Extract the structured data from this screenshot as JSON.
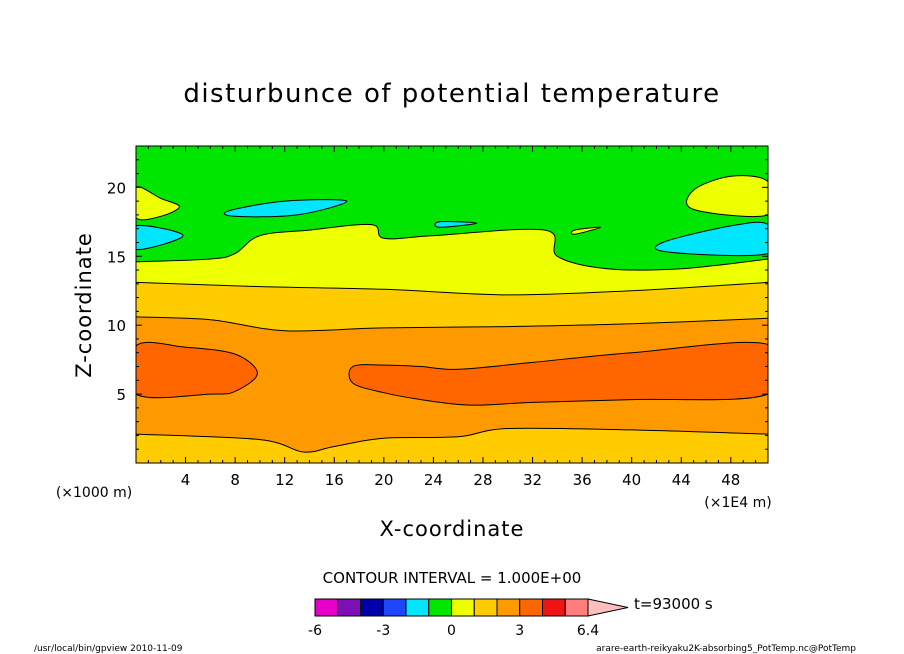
{
  "chart_data": {
    "type": "heatmap",
    "title": "disturbunce of potential temperature",
    "xlabel": "X-coordinate",
    "ylabel": "Z-coordinate",
    "x_unit": "(×1E4 m)",
    "y_unit": "(×1000 m)",
    "xlim": [
      0,
      51
    ],
    "ylim": [
      0,
      23
    ],
    "x_ticks": [
      4,
      8,
      12,
      16,
      20,
      24,
      28,
      32,
      36,
      40,
      44,
      48
    ],
    "y_ticks": [
      5,
      10,
      15,
      20
    ],
    "contour_interval_text": "CONTOUR INTERVAL = 1.000E+00",
    "time_label": "t=93000 s",
    "colorbar": {
      "levels": [
        -6,
        -5,
        -4,
        -3,
        -2,
        -1,
        0,
        1,
        2,
        3,
        4,
        5,
        6.4
      ],
      "tick_labels": [
        "-6",
        "-3",
        "0",
        "3",
        "6.4"
      ],
      "tick_values": [
        -6,
        -3,
        0,
        3,
        6.4
      ],
      "colors": [
        "#e600c8",
        "#7d0fb4",
        "#0000aa",
        "#1e46ff",
        "#00e6ff",
        "#00e600",
        "#eeff00",
        "#ffcc00",
        "#ff9900",
        "#ff6600",
        "#f01414",
        "#ff7d7d",
        "#ffbebe"
      ]
    },
    "bands": [
      {
        "name": "1",
        "color": "#ffcc00",
        "boundary": [
          [
            0,
            2.1
          ],
          [
            10,
            1.7
          ],
          [
            13.5,
            0.8
          ],
          [
            16,
            1.2
          ],
          [
            20,
            1.8
          ],
          [
            26,
            1.9
          ],
          [
            30,
            2.5
          ],
          [
            40,
            2.4
          ],
          [
            51,
            2.1
          ]
        ]
      },
      {
        "name": "2",
        "color": "#ff9900",
        "boundary": [
          [
            0,
            10.6
          ],
          [
            6,
            10.4
          ],
          [
            12,
            9.6
          ],
          [
            20,
            9.8
          ],
          [
            30,
            9.9
          ],
          [
            40,
            10.1
          ],
          [
            51,
            10.5
          ]
        ]
      },
      {
        "name": "3",
        "color": "#ffcc00",
        "boundary": [
          [
            0,
            13.1
          ],
          [
            10,
            12.8
          ],
          [
            20,
            12.6
          ],
          [
            30,
            12.2
          ],
          [
            40,
            12.5
          ],
          [
            51,
            13.1
          ]
        ]
      },
      {
        "name": "4",
        "color": "#eeff00",
        "boundary": [
          [
            0,
            14.6
          ],
          [
            6,
            14.8
          ],
          [
            8,
            15.2
          ],
          [
            10,
            16.5
          ],
          [
            14,
            16.9
          ],
          [
            19,
            17.3
          ],
          [
            20,
            16.3
          ],
          [
            24,
            16.5
          ],
          [
            33,
            16.9
          ],
          [
            34,
            15.0
          ],
          [
            38,
            14.1
          ],
          [
            44,
            14.1
          ],
          [
            51,
            14.8
          ]
        ]
      }
    ],
    "region_orange_high": {
      "color": "#ff6600",
      "outline": [
        [
          0,
          8.5
        ],
        [
          4,
          8.4
        ],
        [
          8,
          7.9
        ],
        [
          9.8,
          6.5
        ],
        [
          8,
          5.2
        ],
        [
          6,
          5.0
        ],
        [
          0,
          5.0
        ]
      ]
    },
    "region_orange_high_2": {
      "color": "#ff6600",
      "outline": [
        [
          17.5,
          7.0
        ],
        [
          20,
          7.1
        ],
        [
          23,
          7.0
        ],
        [
          26,
          6.8
        ],
        [
          32,
          7.3
        ],
        [
          40,
          8.0
        ],
        [
          51,
          8.6
        ],
        [
          51,
          5.0
        ],
        [
          40,
          4.6
        ],
        [
          32,
          4.4
        ],
        [
          27,
          4.2
        ],
        [
          23,
          4.6
        ],
        [
          20,
          5.1
        ],
        [
          17.5,
          5.8
        ]
      ]
    },
    "region_yellow_top_left": {
      "color": "#eeff00",
      "outline": [
        [
          0,
          20.0
        ],
        [
          2,
          19.2
        ],
        [
          3.5,
          18.6
        ],
        [
          2,
          17.9
        ],
        [
          0,
          17.8
        ]
      ]
    },
    "region_yellow_top_right": {
      "color": "#eeff00",
      "outline": [
        [
          45,
          19.8
        ],
        [
          48,
          20.8
        ],
        [
          51,
          20.4
        ],
        [
          51,
          18.0
        ],
        [
          45,
          18.4
        ]
      ]
    },
    "region_yellow_small": {
      "color": "#eeff00",
      "outline": [
        [
          35.4,
          16.9
        ],
        [
          37.5,
          17.1
        ],
        [
          35.4,
          16.6
        ]
      ]
    },
    "region_cyan_left": {
      "color": "#00e6ff",
      "outline": [
        [
          0,
          17.2
        ],
        [
          3.8,
          16.5
        ],
        [
          0,
          15.5
        ]
      ]
    },
    "region_cyan_mid": {
      "color": "#00e6ff",
      "outline": [
        [
          7.5,
          18.3
        ],
        [
          12,
          19.0
        ],
        [
          17,
          19.0
        ],
        [
          13,
          18.0
        ],
        [
          8,
          17.9
        ]
      ]
    },
    "region_cyan_small": {
      "color": "#00e6ff",
      "outline": [
        [
          24.5,
          17.5
        ],
        [
          27.5,
          17.4
        ],
        [
          24.5,
          17.1
        ]
      ]
    },
    "region_cyan_right": {
      "color": "#00e6ff",
      "outline": [
        [
          42.5,
          16.0
        ],
        [
          48,
          17.2
        ],
        [
          51,
          17.3
        ],
        [
          51,
          15.2
        ],
        [
          43,
          15.3
        ]
      ]
    }
  },
  "footer": {
    "left": "/usr/local/bin/gpview  2010-11-09",
    "right": "arare-earth-reikyaku2K-absorbing5_PotTemp.nc@PotTemp"
  }
}
